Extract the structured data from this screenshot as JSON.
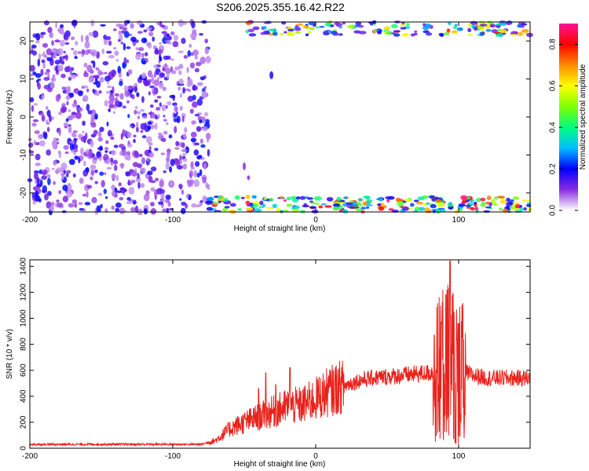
{
  "page": {
    "title": "S206.2025.355.16.42.R22"
  },
  "chart_data": [
    {
      "type": "heatmap",
      "xlabel": "Height of straight line (km)",
      "ylabel": "Frequency (Hz)",
      "xlim": [
        -200,
        150
      ],
      "ylim": [
        -25,
        25
      ],
      "x_ticks": [
        -200,
        -100,
        0,
        100
      ],
      "y_ticks": [
        20,
        10,
        0,
        -10,
        -20
      ],
      "colorbar": {
        "label": "Normalized spectral amplitude",
        "ticks": [
          "0.0",
          "0.2",
          "0.4",
          "0.6",
          "0.8"
        ],
        "range": [
          0,
          0.9
        ],
        "colors": [
          "#ffffff",
          "#8a2be2",
          "#0000ff",
          "#00bfff",
          "#00ff7f",
          "#7fff00",
          "#ffff00",
          "#ff8c00",
          "#ff0000",
          "#ff1493"
        ]
      },
      "regions": [
        {
          "x_range": [
            -200,
            -75
          ],
          "f_range": [
            -25,
            25
          ],
          "level": "low-to-medium (purple)"
        },
        {
          "x_range": [
            -75,
            150
          ],
          "f_range": [
            -25,
            -21
          ],
          "level": "high (green/yellow/red)"
        },
        {
          "x_range": [
            -50,
            150
          ],
          "f_range": [
            22,
            25
          ],
          "level": "high (green/yellow)"
        }
      ]
    },
    {
      "type": "line",
      "xlabel": "Height of straight line (km)",
      "ylabel": "SNR (10 * v/v)",
      "xlim": [
        -200,
        150
      ],
      "ylim": [
        0,
        1450
      ],
      "x_ticks": [
        -200,
        -100,
        0,
        100
      ],
      "y_ticks": [
        0,
        200,
        400,
        600,
        800,
        1000,
        1200,
        1400
      ],
      "color": "#e8221c",
      "x": [
        -200,
        -150,
        -100,
        -80,
        -70,
        -60,
        -50,
        -40,
        -30,
        -20,
        -10,
        0,
        10,
        20,
        30,
        40,
        50,
        60,
        70,
        80,
        85,
        90,
        95,
        100,
        110,
        120,
        130,
        140,
        150
      ],
      "values": [
        30,
        30,
        30,
        30,
        60,
        150,
        200,
        240,
        280,
        320,
        330,
        380,
        440,
        480,
        520,
        540,
        550,
        560,
        570,
        580,
        600,
        700,
        650,
        600,
        560,
        540,
        540,
        540,
        540
      ],
      "peaks": [
        {
          "x": -40,
          "y": 460
        },
        {
          "x": -35,
          "y": 580
        },
        {
          "x": -28,
          "y": 490
        },
        {
          "x": -18,
          "y": 620
        },
        {
          "x": 83,
          "y": 870
        },
        {
          "x": 88,
          "y": 970
        },
        {
          "x": 91,
          "y": 1180
        },
        {
          "x": 94,
          "y": 1440
        },
        {
          "x": 96,
          "y": 1190
        },
        {
          "x": 100,
          "y": 960
        }
      ]
    }
  ]
}
